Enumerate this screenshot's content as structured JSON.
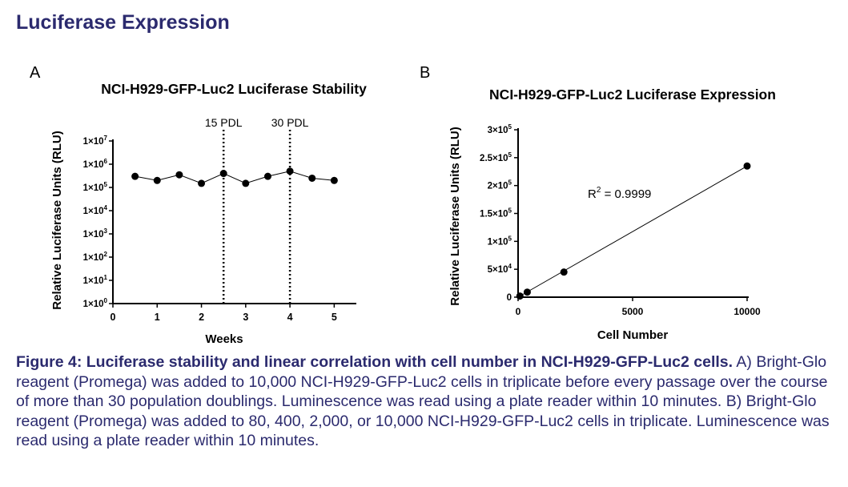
{
  "header": {
    "title": "Luciferase Expression"
  },
  "panels": {
    "a": "A",
    "b": "B"
  },
  "chart_data": [
    {
      "type": "line",
      "panel": "A",
      "title": "NCI-H929-GFP-Luc2 Luciferase Stability",
      "xlabel": "Weeks",
      "ylabel": "Relative Luciferase Units (RLU)",
      "xlim": [
        0,
        5.5
      ],
      "ylim_log10": [
        0,
        7
      ],
      "xticks": [
        "0",
        "1",
        "2",
        "3",
        "4",
        "5"
      ],
      "ytick_bases": [
        "1×10",
        "1×10",
        "1×10",
        "1×10",
        "1×10",
        "1×10",
        "1×10",
        "1×10"
      ],
      "ytick_exps": [
        "0",
        "1",
        "2",
        "3",
        "4",
        "5",
        "6",
        "7"
      ],
      "x": [
        0.5,
        1,
        1.5,
        2,
        2.5,
        3,
        3.5,
        4,
        4.5,
        5
      ],
      "y": [
        300000,
        200000,
        350000,
        150000,
        400000,
        150000,
        300000,
        500000,
        250000,
        200000
      ],
      "annotations": [
        {
          "x": 2.5,
          "label": "15 PDL",
          "style": "dotted-vertical"
        },
        {
          "x": 4,
          "label": "30 PDL",
          "style": "dotted-vertical"
        }
      ]
    },
    {
      "type": "scatter",
      "panel": "B",
      "title": "NCI-H929-GFP-Luc2 Luciferase Expression",
      "xlabel": "Cell Number",
      "ylabel": "Relative Luciferase Units (RLU)",
      "xlim": [
        0,
        10000
      ],
      "ylim": [
        0,
        300000
      ],
      "xticks": [
        "0",
        "5000",
        "10000"
      ],
      "ytick_bases": [
        "0",
        "5×10",
        "1×10",
        "1.5×10",
        "2×10",
        "2.5×10",
        "3×10"
      ],
      "ytick_exps": [
        "",
        "4",
        "5",
        "5",
        "5",
        "5",
        "5"
      ],
      "x": [
        80,
        400,
        2000,
        10000
      ],
      "y": [
        2000,
        9000,
        45000,
        235000
      ],
      "trendline": "linear",
      "r2_label": "R",
      "r2_exp": "2",
      "r2_value": " = 0.9999"
    }
  ],
  "caption": {
    "bold": "Figure 4: Luciferase stability and linear correlation with cell number in NCI-H929-GFP-Luc2 cells.",
    "text": " A) Bright-Glo reagent (Promega) was added to 10,000 NCI-H929-GFP-Luc2 cells in triplicate before every passage over the course of more than 30 population doublings. Luminescence was read using a plate reader within 10 minutes. B) Bright-Glo reagent (Promega) was added to 80, 400, 2,000, or 10,000 NCI-H929-GFP-Luc2 cells in triplicate. Luminescence was read using a plate reader within 10 minutes."
  }
}
